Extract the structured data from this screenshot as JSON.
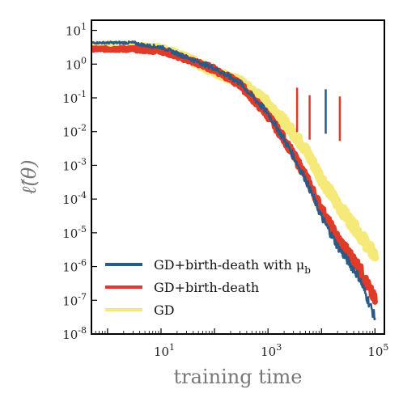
{
  "chart_data": {
    "type": "line",
    "xscale": "log",
    "yscale": "log",
    "xlabel": "training time",
    "ylabel": "ℓ̂(θ)",
    "xlim": [
      0.5,
      150000
    ],
    "ylim": [
      1e-08,
      20
    ],
    "grid": false,
    "legend_position": "lower-left",
    "x_ticks": [
      {
        "value": 10,
        "base": "10",
        "exp": "1"
      },
      {
        "value": 1000,
        "base": "10",
        "exp": "3"
      },
      {
        "value": 100000,
        "base": "10",
        "exp": "5"
      }
    ],
    "y_ticks": [
      {
        "value": 10,
        "base": "10",
        "exp": "1"
      },
      {
        "value": 1,
        "base": "10",
        "exp": "0"
      },
      {
        "value": 0.1,
        "base": "10",
        "exp": "-1"
      },
      {
        "value": 0.01,
        "base": "10",
        "exp": "-2"
      },
      {
        "value": 0.001,
        "base": "10",
        "exp": "-3"
      },
      {
        "value": 0.0001,
        "base": "10",
        "exp": "-4"
      },
      {
        "value": 1e-05,
        "base": "10",
        "exp": "-5"
      },
      {
        "value": 1e-06,
        "base": "10",
        "exp": "-6"
      },
      {
        "value": 1e-07,
        "base": "10",
        "exp": "-7"
      },
      {
        "value": 1e-08,
        "base": "10",
        "exp": "-8"
      }
    ],
    "series": [
      {
        "name": "GD",
        "name_sub": "",
        "color": "#f5e97a",
        "width": 10,
        "x": [
          0.5,
          3,
          5,
          10,
          30,
          100,
          300,
          1000,
          2000,
          5000,
          10000,
          20000,
          50000,
          100000
        ],
        "y": [
          3.5,
          3.5,
          3.0,
          3.0,
          1.5,
          0.6,
          0.3,
          0.07,
          0.02,
          0.003,
          0.0004,
          7e-05,
          1e-05,
          2e-06
        ]
      },
      {
        "name": "GD+birth-death",
        "name_sub": "",
        "color": "#e03a28",
        "width": 7,
        "x": [
          0.5,
          3,
          5,
          10,
          30,
          100,
          300,
          1000,
          2000,
          5000,
          10000,
          20000,
          50000,
          100000
        ],
        "y": [
          2.8,
          2.8,
          2.6,
          2.5,
          1.4,
          0.7,
          0.25,
          0.03,
          0.006,
          0.0005,
          5e-05,
          7e-06,
          1e-06,
          1e-07
        ]
      },
      {
        "name": "GD+birth-death with μ",
        "name_sub": "b",
        "color": "#2c5a86",
        "width": 2.5,
        "x": [
          0.5,
          3,
          5,
          10,
          30,
          100,
          300,
          1000,
          2000,
          5000,
          10000,
          20000,
          50000,
          100000
        ],
        "y": [
          4.3,
          4.3,
          3.6,
          3.2,
          1.6,
          0.75,
          0.28,
          0.035,
          0.006,
          0.0004,
          3e-05,
          4e-06,
          5e-07,
          3e-08
        ]
      }
    ],
    "spikes": [
      {
        "x": 3500,
        "y_top": 0.2,
        "color": "#e03a28"
      },
      {
        "x": 6000,
        "y_top": 0.12,
        "color": "#e03a28"
      },
      {
        "x": 12000,
        "y_top": 0.18,
        "color": "#2c5a86"
      },
      {
        "x": 22000,
        "y_top": 0.11,
        "color": "#e03a28"
      }
    ]
  }
}
